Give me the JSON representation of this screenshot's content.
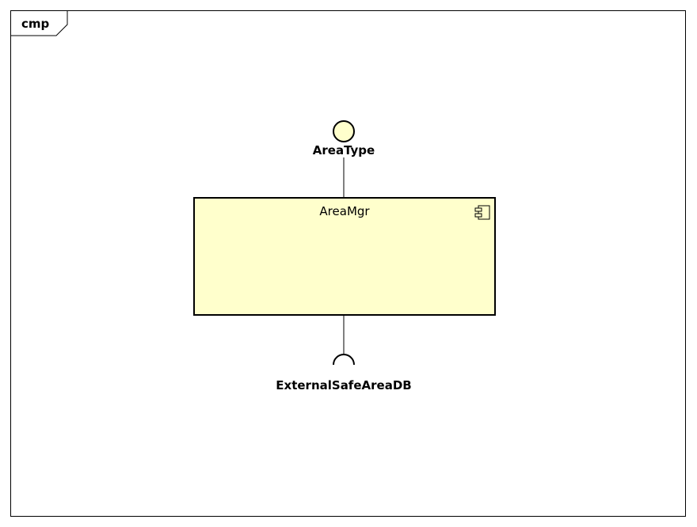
{
  "frame": {
    "label": "cmp"
  },
  "component": {
    "name": "AreaMgr",
    "fill_color": "#ffffcc",
    "icon": "component-icon"
  },
  "provided_interface": {
    "name": "AreaType",
    "fill_color": "#ffffcc",
    "icon": "lollipop-circle"
  },
  "required_interface": {
    "name": "ExternalSafeAreaDB",
    "icon": "socket-half-circle"
  }
}
